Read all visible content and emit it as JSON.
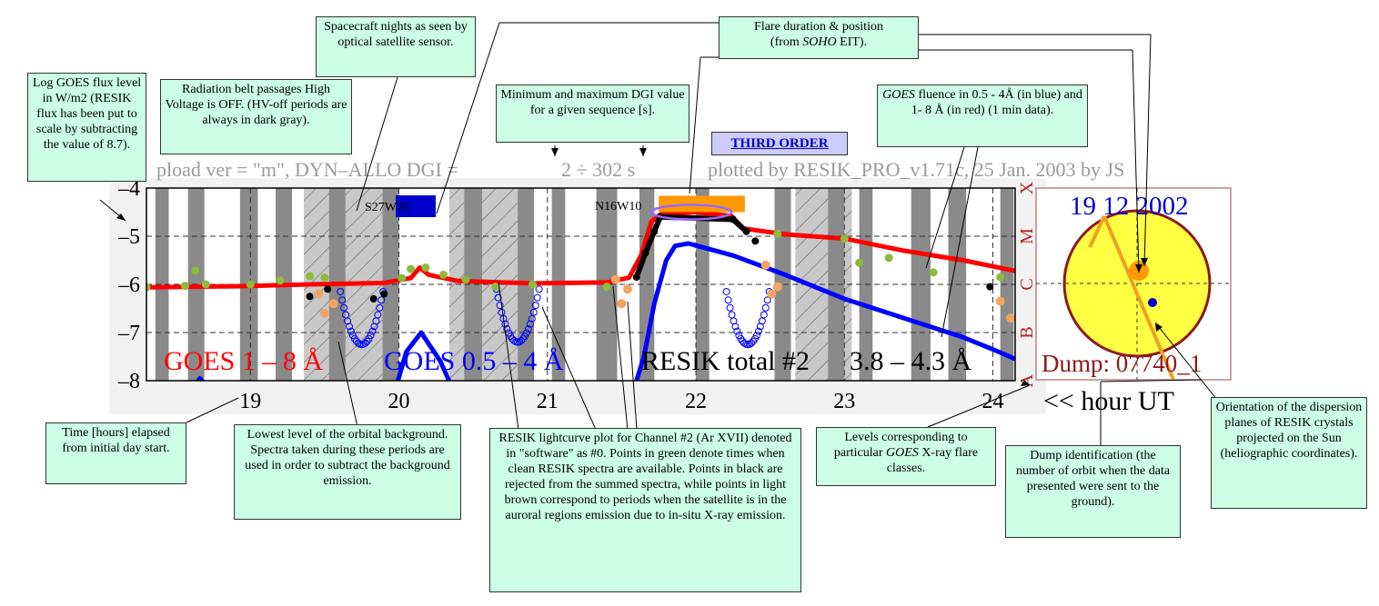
{
  "header": {
    "upload_ver": "pload ver = \"m\", DYN–ALLO DGI =",
    "dgi_range": "2 ÷ 302 s",
    "plotted_by": "plotted by RESIK_PRO_v1.71c, 25 Jan. 2003 by JS"
  },
  "badge": "THIRD ORDER",
  "chart_data": {
    "type": "line",
    "xlabel": "<< hour UT",
    "x_ticks": [
      "19",
      "20",
      "21",
      "22",
      "23",
      "24"
    ],
    "xlim": [
      18.3,
      24.15
    ],
    "ylim": [
      -8,
      -4
    ],
    "y_ticks": [
      "–4",
      "–5",
      "–6",
      "–7",
      "–8"
    ],
    "flare_class_labels": [
      "A",
      "B",
      "C",
      "M",
      "X"
    ],
    "series_labels": [
      "GOES 1 – 8 Å",
      "GOES 0.5 – 4 Å",
      "RESIK total #2",
      "3.8 – 4.3 Å"
    ],
    "colors": {
      "goes_long": "#ff0000",
      "goes_short": "#0000ff",
      "resik_clean": "#8dbb3a",
      "resik_rejected": "#000000",
      "resik_auroral": "#f4a460",
      "night": "#8a8a8a",
      "flare_bar": "#ff9900"
    },
    "night_bands": [
      [
        18.36,
        18.45
      ],
      [
        18.58,
        18.69
      ],
      [
        18.93,
        19.05
      ],
      [
        19.17,
        19.28
      ],
      [
        19.53,
        19.64
      ],
      [
        19.89,
        20.0
      ],
      [
        20.44,
        20.56
      ],
      [
        20.8,
        20.91
      ],
      [
        21.03,
        21.12
      ],
      [
        21.33,
        21.47
      ],
      [
        21.62,
        21.72
      ],
      [
        22.0,
        22.09
      ],
      [
        22.53,
        22.64
      ],
      [
        22.89,
        23.0
      ],
      [
        23.1,
        23.19
      ],
      [
        23.45,
        23.58
      ],
      [
        23.7,
        23.82
      ],
      [
        24.05,
        24.14
      ]
    ],
    "hatched_periods": [
      [
        19.36,
        19.92
      ],
      [
        20.34,
        20.8
      ],
      [
        22.67,
        23.05
      ]
    ],
    "goes_long_xy": [
      [
        18.3,
        -6.06
      ],
      [
        18.9,
        -6.04
      ],
      [
        19.4,
        -6.0
      ],
      [
        19.9,
        -5.97
      ],
      [
        20.08,
        -5.87
      ],
      [
        20.14,
        -5.65
      ],
      [
        20.2,
        -5.8
      ],
      [
        20.4,
        -5.93
      ],
      [
        20.9,
        -5.98
      ],
      [
        21.4,
        -5.96
      ],
      [
        21.55,
        -5.86
      ],
      [
        21.63,
        -5.4
      ],
      [
        21.7,
        -4.7
      ],
      [
        21.76,
        -4.55
      ],
      [
        22.0,
        -4.5
      ],
      [
        22.24,
        -4.58
      ],
      [
        22.32,
        -4.84
      ],
      [
        22.6,
        -4.96
      ],
      [
        23.0,
        -5.05
      ],
      [
        23.4,
        -5.3
      ],
      [
        23.8,
        -5.5
      ],
      [
        24.15,
        -5.72
      ]
    ],
    "goes_short_xy": [
      [
        18.3,
        -9.0
      ],
      [
        18.6,
        -8.2
      ],
      [
        18.66,
        -7.95
      ],
      [
        18.72,
        -8.2
      ],
      [
        18.8,
        -9.0
      ],
      [
        19.9,
        -9.0
      ],
      [
        20.05,
        -7.4
      ],
      [
        20.15,
        -7.0
      ],
      [
        20.28,
        -7.6
      ],
      [
        20.38,
        -8.3
      ],
      [
        20.5,
        -9.0
      ],
      [
        21.5,
        -9.0
      ],
      [
        21.65,
        -7.5
      ],
      [
        21.72,
        -6.4
      ],
      [
        21.8,
        -5.5
      ],
      [
        21.86,
        -5.2
      ],
      [
        21.95,
        -5.15
      ],
      [
        22.25,
        -5.4
      ],
      [
        22.6,
        -5.8
      ],
      [
        23.0,
        -6.3
      ],
      [
        23.4,
        -6.7
      ],
      [
        23.8,
        -7.1
      ],
      [
        24.0,
        -7.35
      ],
      [
        24.15,
        -7.55
      ]
    ],
    "resik_clean_xy": [
      [
        18.3,
        -6.06
      ],
      [
        18.56,
        -6.03
      ],
      [
        18.63,
        -5.72
      ],
      [
        18.7,
        -6.0
      ],
      [
        19.0,
        -6.0
      ],
      [
        19.2,
        -5.92
      ],
      [
        19.4,
        -5.83
      ],
      [
        19.5,
        -5.86
      ],
      [
        20.02,
        -5.87
      ],
      [
        20.08,
        -5.68
      ],
      [
        20.18,
        -5.65
      ],
      [
        20.3,
        -5.8
      ],
      [
        20.45,
        -5.9
      ],
      [
        20.65,
        -6.05
      ],
      [
        20.9,
        -6.0
      ],
      [
        21.4,
        -6.05
      ],
      [
        22.55,
        -4.95
      ],
      [
        23.0,
        -5.05
      ],
      [
        23.1,
        -5.55
      ],
      [
        23.3,
        -5.45
      ],
      [
        23.6,
        -5.75
      ],
      [
        24.05,
        -5.85
      ]
    ],
    "resik_rejected_xy": [
      [
        19.4,
        -6.25
      ],
      [
        19.52,
        -6.1
      ],
      [
        19.83,
        -6.3
      ],
      [
        19.9,
        -6.2
      ],
      [
        21.6,
        -5.85
      ],
      [
        21.66,
        -5.35
      ],
      [
        21.72,
        -4.9
      ],
      [
        21.76,
        -4.6
      ],
      [
        22.25,
        -4.65
      ],
      [
        22.34,
        -4.9
      ],
      [
        22.4,
        -5.1
      ],
      [
        23.98,
        -6.05
      ]
    ],
    "resik_auroral_xy": [
      [
        19.46,
        -6.2
      ],
      [
        19.5,
        -6.6
      ],
      [
        19.56,
        -6.4
      ],
      [
        21.46,
        -5.9
      ],
      [
        21.5,
        -6.4
      ],
      [
        21.54,
        -6.1
      ],
      [
        22.47,
        -5.6
      ],
      [
        22.51,
        -6.2
      ],
      [
        22.55,
        -6.05
      ],
      [
        24.05,
        -6.35
      ],
      [
        24.12,
        -6.7
      ]
    ],
    "min_dip_centers": [
      [
        19.75,
        -7.25
      ],
      [
        20.8,
        -7.2
      ],
      [
        22.35,
        -7.25
      ]
    ],
    "flare_bar": {
      "x0": 21.75,
      "x1": 22.33,
      "y": -4.33
    },
    "flare_position": "N16W10",
    "other_position": "S27W26",
    "disk": {
      "date": "19 12 2002",
      "dump": "Dump: 07740_1",
      "flare_dot_color": "#ff9900",
      "sensor_dot_color": "#0000cc"
    }
  },
  "annotations": {
    "log_goes": "Log GOES flux level in W/m2 (RESIK flux has been put to scale by subtracting the value of 8.7).",
    "radiation": "Radiation belt passages High Voltage is OFF. (HV-off periods are always in dark gray).",
    "nights": "Spacecraft nights as seen by optical satellite sensor.",
    "dgi": "Minimum and maximum DGI value for a given sequence [s].",
    "flare_line1": "Flare duration & position",
    "flare_line2_pre": "(from ",
    "flare_line2_ital": "SOHO",
    "flare_line2_post": " EIT).",
    "fluence_ital": "GOES",
    "fluence_rest": " fluence in 0.5 - 4Å (in blue) and 1- 8 Å (in red) (1 min data).",
    "time": "Time [hours] elapsed from initial day  start.",
    "lowest": "Lowest level of the orbital background. Spectra taken during these periods are used in order to subtract the background emission.",
    "resik_lc": "RESIK lightcurve plot for Channel #2 (Ar XVII) denoted in \"software\" as #0. Points in green denote times when clean RESIK spectra are available. Points in black are rejected from the summed spectra, while points in light brown correspond to periods when the satellite is in the auroral regions emission due to in-situ X-ray emission.",
    "levels_pre": "Levels corresponding to particular ",
    "levels_ital": "GOES",
    "levels_post": " X-ray flare classes.",
    "dump": "Dump identification (the number of orbit when the data presented were sent to the ground).",
    "orientation": "Orientation of    the dispersion planes of RESIK crystals projected on the Sun (heliographic coordinates)."
  }
}
